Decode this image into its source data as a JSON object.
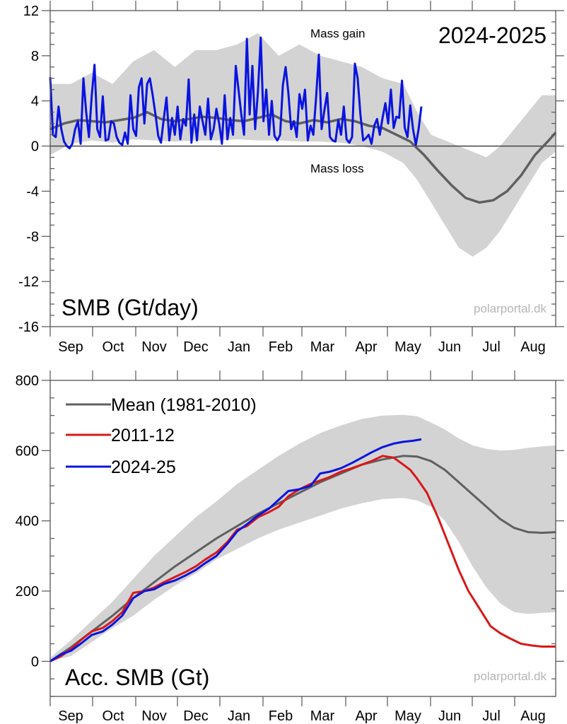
{
  "colors": {
    "band": "#d3d3d3",
    "mean": "#606060",
    "current": "#0a14e0",
    "year2012": "#d81818",
    "axis": "#555555",
    "zero_line": "#444444",
    "credit": "#b5b5b5"
  },
  "chart_data": [
    {
      "type": "line",
      "title": "SMB (Gt/day)",
      "subtitle": "2024-2025",
      "annotations": [
        "Mass gain",
        "Mass loss"
      ],
      "credit": "polarportal.dk",
      "xlabel": "",
      "ylabel": "",
      "ylim": [
        -16,
        12
      ],
      "yticks": [
        12,
        8,
        4,
        0,
        -4,
        -8,
        -12,
        -16
      ],
      "ytick_labels": [
        "12",
        "8",
        "4",
        "0",
        "-4",
        "-8",
        "-12",
        "-16"
      ],
      "x_unit": "day of season (0 = 1 Sep)",
      "xlim": [
        0,
        365
      ],
      "months": [
        "Sep",
        "Oct",
        "Nov",
        "Dec",
        "Jan",
        "Feb",
        "Mar",
        "Apr",
        "May",
        "Jun",
        "Jul",
        "Aug"
      ],
      "grid": false,
      "zero_line": true,
      "series": [
        {
          "name": "Mean (1981-2010)",
          "x": [
            0,
            10,
            20,
            30,
            40,
            50,
            60,
            70,
            80,
            90,
            100,
            110,
            120,
            130,
            140,
            150,
            160,
            170,
            180,
            190,
            200,
            210,
            220,
            230,
            240,
            250,
            260,
            270,
            280,
            290,
            300,
            310,
            320,
            330,
            340,
            350,
            360,
            365
          ],
          "values": [
            1.5,
            2.0,
            2.3,
            2.2,
            2.1,
            2.3,
            2.5,
            3.0,
            2.4,
            2.2,
            2.4,
            2.6,
            2.5,
            2.3,
            2.2,
            2.5,
            2.8,
            2.2,
            2.0,
            2.3,
            2.1,
            2.4,
            2.2,
            1.8,
            1.6,
            1.0,
            0.4,
            -0.8,
            -2.2,
            -3.5,
            -4.6,
            -5.0,
            -4.8,
            -4.0,
            -2.6,
            -0.8,
            0.5,
            1.2
          ]
        },
        {
          "name": "Band upper (range)",
          "x": [
            0,
            15,
            30,
            45,
            60,
            75,
            90,
            105,
            120,
            135,
            150,
            165,
            180,
            195,
            210,
            225,
            240,
            255,
            265,
            275,
            285,
            295,
            305,
            315,
            325,
            335,
            345,
            355,
            365
          ],
          "values": [
            5.5,
            5.5,
            6.5,
            5.5,
            7.5,
            8.5,
            7.0,
            8.5,
            8.5,
            9.0,
            10.0,
            8.0,
            9.0,
            8.0,
            7.5,
            7.0,
            6.0,
            5.5,
            3.0,
            1.0,
            0.5,
            0.0,
            -0.5,
            -1.0,
            0.0,
            1.5,
            3.0,
            4.5,
            4.5
          ]
        },
        {
          "name": "Band lower (range)",
          "x": [
            0,
            15,
            30,
            45,
            60,
            75,
            90,
            105,
            120,
            135,
            150,
            165,
            180,
            195,
            210,
            225,
            240,
            255,
            265,
            275,
            285,
            295,
            305,
            315,
            325,
            335,
            345,
            355,
            365
          ],
          "values": [
            -0.8,
            0.2,
            0.5,
            0.3,
            0.6,
            0.5,
            0.4,
            0.5,
            0.5,
            0.6,
            0.5,
            0.5,
            0.4,
            0.4,
            0.3,
            0.0,
            -0.5,
            -1.5,
            -3.0,
            -5.0,
            -7.0,
            -9.0,
            -9.8,
            -9.0,
            -7.5,
            -5.5,
            -3.5,
            -1.5,
            -0.5
          ]
        },
        {
          "name": "2024-25",
          "x": [
            0,
            2,
            4,
            6,
            8,
            10,
            12,
            14,
            16,
            18,
            20,
            22,
            24,
            26,
            28,
            30,
            32,
            34,
            36,
            38,
            40,
            42,
            44,
            46,
            48,
            50,
            52,
            54,
            56,
            58,
            60,
            62,
            64,
            66,
            68,
            70,
            72,
            74,
            76,
            78,
            80,
            82,
            84,
            86,
            88,
            90,
            92,
            94,
            96,
            98,
            100,
            102,
            104,
            106,
            108,
            110,
            112,
            114,
            116,
            118,
            120,
            122,
            124,
            126,
            128,
            130,
            132,
            134,
            136,
            138,
            140,
            142,
            144,
            146,
            148,
            150,
            152,
            154,
            156,
            158,
            160,
            162,
            164,
            166,
            168,
            170,
            172,
            174,
            176,
            178,
            180,
            182,
            184,
            186,
            188,
            190,
            192,
            194,
            196,
            198,
            200,
            202,
            204,
            206,
            208,
            210,
            212,
            214,
            216,
            218,
            220,
            222,
            224,
            226,
            228,
            230,
            232,
            234,
            236,
            238,
            240,
            242,
            244,
            246,
            248,
            250,
            252,
            254,
            256,
            258,
            260,
            262,
            264,
            266,
            268
          ],
          "values": [
            6.1,
            1.0,
            0.8,
            3.5,
            1.5,
            0.4,
            0.0,
            -0.2,
            0.2,
            1.5,
            2.2,
            0.2,
            6.0,
            3.0,
            0.8,
            4.5,
            7.2,
            1.5,
            0.8,
            4.4,
            0.5,
            0.6,
            2.2,
            2.0,
            0.8,
            0.3,
            0.1,
            1.2,
            0.2,
            4.5,
            1.5,
            0.9,
            5.2,
            6.0,
            2.0,
            5.5,
            6.0,
            4.5,
            2.8,
            0.9,
            0.3,
            2.4,
            4.3,
            0.5,
            2.5,
            1.0,
            3.5,
            0.6,
            2.4,
            1.8,
            5.9,
            0.3,
            2.8,
            0.5,
            3.5,
            2.2,
            1.0,
            4.2,
            0.6,
            1.5,
            3.3,
            2.0,
            0.2,
            4.5,
            0.6,
            2.5,
            1.0,
            7.1,
            5.0,
            2.8,
            1.0,
            9.5,
            2.8,
            7.1,
            1.5,
            4.8,
            9.6,
            2.2,
            5.0,
            1.0,
            4.0,
            0.9,
            0.5,
            1.0,
            5.4,
            7.0,
            4.7,
            1.5,
            2.2,
            0.8,
            4.6,
            3.3,
            5.0,
            0.5,
            1.8,
            1.0,
            4.3,
            8.1,
            1.5,
            3.2,
            4.7,
            0.8,
            0.5,
            0.4,
            2.3,
            1.0,
            3.5,
            0.6,
            0.3,
            0.8,
            7.3,
            6.0,
            2.8,
            0.5,
            0.7,
            1.0,
            0.2,
            1.8,
            2.4,
            1.0,
            2.5,
            3.8,
            2.0,
            5.0,
            1.6,
            2.6,
            2.5,
            5.8,
            1.6,
            0.8,
            3.6,
            1.5,
            0.1,
            1.5,
            3.5
          ]
        }
      ]
    },
    {
      "type": "line",
      "title": "Acc. SMB (Gt)",
      "credit": "polarportal.dk",
      "xlabel": "",
      "ylabel": "",
      "ylim": [
        -100,
        800
      ],
      "yticks": [
        800,
        600,
        400,
        200,
        0
      ],
      "ytick_labels": [
        "800",
        "600",
        "400",
        "200",
        "0"
      ],
      "x_unit": "day of season (0 = 1 Sep)",
      "xlim": [
        0,
        365
      ],
      "months": [
        "Sep",
        "Oct",
        "Nov",
        "Dec",
        "Jan",
        "Feb",
        "Mar",
        "Apr",
        "May",
        "Jun",
        "Jul",
        "Aug"
      ],
      "grid": false,
      "legend": {
        "placement": "top-left",
        "entries": [
          "Mean (1981-2010)",
          "2011-12",
          "2024-25"
        ]
      },
      "series": [
        {
          "name": "Mean (1981-2010)",
          "x": [
            0,
            15,
            30,
            45,
            60,
            75,
            90,
            105,
            120,
            135,
            150,
            165,
            180,
            195,
            210,
            225,
            240,
            255,
            265,
            275,
            285,
            295,
            305,
            315,
            325,
            335,
            345,
            355,
            365
          ],
          "values": [
            0,
            40,
            85,
            130,
            180,
            225,
            270,
            310,
            350,
            385,
            420,
            450,
            480,
            510,
            535,
            560,
            575,
            585,
            583,
            570,
            545,
            510,
            475,
            440,
            405,
            380,
            368,
            366,
            368
          ]
        },
        {
          "name": "Band upper (range)",
          "x": [
            0,
            15,
            30,
            45,
            60,
            75,
            90,
            105,
            120,
            135,
            150,
            165,
            180,
            195,
            210,
            225,
            240,
            255,
            265,
            275,
            285,
            295,
            305,
            315,
            325,
            335,
            345,
            355,
            365
          ],
          "values": [
            10,
            60,
            115,
            170,
            235,
            300,
            355,
            410,
            455,
            505,
            545,
            585,
            620,
            650,
            672,
            690,
            700,
            702,
            698,
            680,
            660,
            635,
            615,
            605,
            600,
            602,
            608,
            612,
            615
          ]
        },
        {
          "name": "Band lower (range)",
          "x": [
            0,
            15,
            30,
            45,
            60,
            75,
            90,
            105,
            120,
            135,
            150,
            165,
            180,
            195,
            210,
            225,
            240,
            255,
            265,
            275,
            285,
            295,
            305,
            315,
            325,
            335,
            345,
            355,
            365
          ],
          "values": [
            0,
            15,
            55,
            95,
            130,
            175,
            215,
            250,
            290,
            320,
            350,
            375,
            395,
            415,
            435,
            450,
            462,
            465,
            458,
            440,
            400,
            340,
            270,
            210,
            165,
            140,
            135,
            138,
            140
          ]
        },
        {
          "name": "2011-12",
          "x": [
            0,
            8,
            15,
            22,
            30,
            38,
            45,
            52,
            60,
            68,
            75,
            82,
            90,
            98,
            105,
            112,
            120,
            128,
            135,
            142,
            150,
            158,
            165,
            172,
            180,
            188,
            195,
            202,
            210,
            218,
            225,
            232,
            240,
            248,
            255,
            260,
            265,
            272,
            280,
            288,
            295,
            302,
            310,
            318,
            325,
            332,
            340,
            348,
            355,
            362,
            365
          ],
          "values": [
            0,
            15,
            35,
            60,
            85,
            95,
            115,
            140,
            195,
            200,
            210,
            225,
            240,
            255,
            270,
            290,
            310,
            340,
            375,
            385,
            410,
            425,
            440,
            470,
            490,
            505,
            515,
            525,
            540,
            550,
            560,
            570,
            585,
            580,
            560,
            545,
            520,
            480,
            410,
            330,
            260,
            200,
            150,
            100,
            80,
            65,
            50,
            45,
            42,
            42,
            42
          ]
        },
        {
          "name": "2024-25",
          "x": [
            0,
            8,
            15,
            22,
            30,
            38,
            45,
            52,
            60,
            68,
            75,
            82,
            90,
            98,
            105,
            112,
            120,
            128,
            135,
            142,
            150,
            158,
            165,
            172,
            180,
            188,
            195,
            202,
            210,
            218,
            225,
            232,
            240,
            248,
            255,
            262,
            268
          ],
          "values": [
            0,
            20,
            30,
            50,
            75,
            85,
            105,
            130,
            180,
            200,
            205,
            220,
            230,
            245,
            260,
            280,
            300,
            335,
            370,
            390,
            415,
            435,
            460,
            485,
            490,
            500,
            535,
            540,
            550,
            565,
            580,
            595,
            610,
            620,
            625,
            628,
            632
          ]
        }
      ]
    }
  ]
}
